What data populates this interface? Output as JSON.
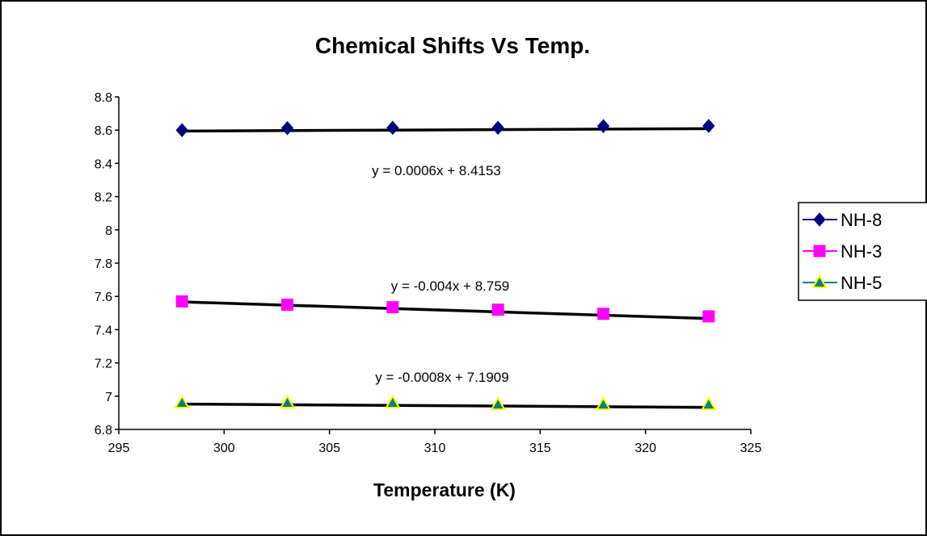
{
  "chart_data": {
    "type": "scatter",
    "title": "Chemical Shifts Vs Temp.",
    "xlabel": "Temperature (K)",
    "ylabel": "",
    "xlim": [
      295,
      325
    ],
    "ylim": [
      6.8,
      8.8
    ],
    "x_ticks": [
      "295",
      "300",
      "305",
      "310",
      "315",
      "320",
      "325"
    ],
    "y_ticks": [
      "6.8",
      "7",
      "7.2",
      "7.4",
      "7.6",
      "7.8",
      "8",
      "8.2",
      "8.4",
      "8.6",
      "8.8"
    ],
    "grid": false,
    "legend_position": "right",
    "series": [
      {
        "name": "NH-8",
        "marker": "diamond",
        "color": "#000080",
        "x": [
          298,
          303,
          308,
          313,
          318,
          323
        ],
        "y": [
          8.6,
          8.612,
          8.614,
          8.614,
          8.624,
          8.625
        ],
        "trendline": {
          "slope": 0.0006,
          "intercept": 8.4153,
          "equation": "y = 0.0006x + 8.4153"
        }
      },
      {
        "name": "NH-3",
        "marker": "square",
        "color": "#ff00ff",
        "x": [
          298,
          303,
          308,
          313,
          318,
          323
        ],
        "y": [
          7.57,
          7.55,
          7.535,
          7.52,
          7.495,
          7.48
        ],
        "trendline": {
          "slope": -0.004,
          "intercept": 8.759,
          "equation": "y = -0.004x + 8.759"
        }
      },
      {
        "name": "NH-5",
        "marker": "triangle",
        "color": "#008080",
        "fill": "#ffff00",
        "x": [
          298,
          303,
          308,
          313,
          318,
          323
        ],
        "y": [
          6.96,
          6.96,
          6.96,
          6.95,
          6.95,
          6.95
        ],
        "trendline": {
          "slope": -0.0008,
          "intercept": 7.1909,
          "equation": "y = -0.0008x + 7.1909"
        }
      }
    ]
  }
}
